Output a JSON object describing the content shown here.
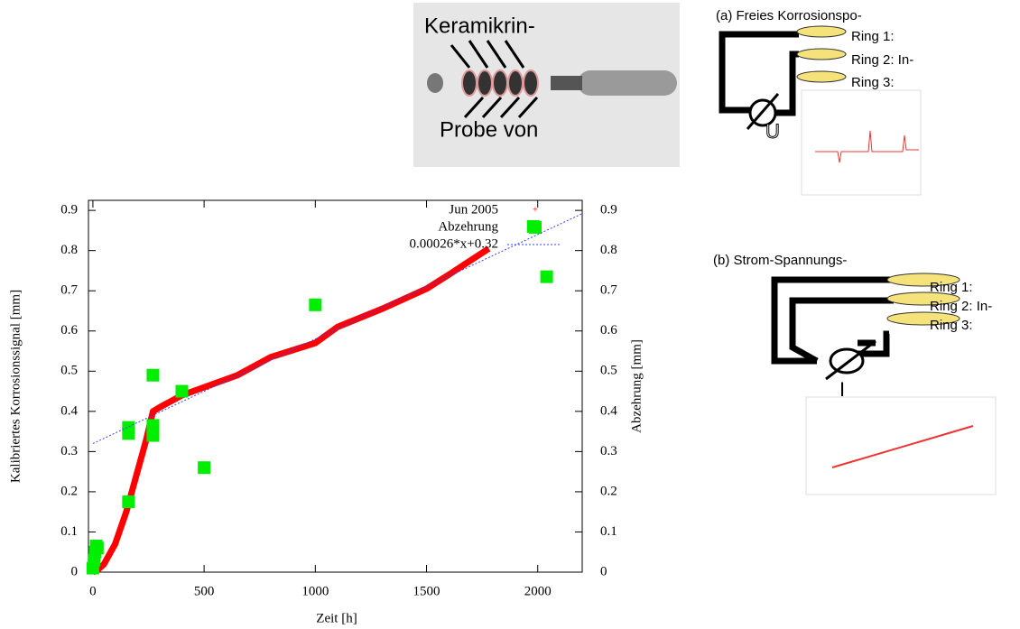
{
  "chart_data": {
    "type": "line",
    "xlabel": "Zeit [h]",
    "ylabel": "Kalibriertes Korrosionssignal [mm]",
    "y2label": "Abzehrung [mm]",
    "xlim": [
      -20,
      2200
    ],
    "ylim": [
      0,
      0.925
    ],
    "y2lim": [
      0,
      0.925
    ],
    "xticks": [
      0,
      500,
      1000,
      1500,
      2000
    ],
    "yticks": [
      0,
      0.1,
      0.2,
      0.3,
      0.4,
      0.5,
      0.6,
      0.7,
      0.8,
      0.9
    ],
    "y2ticks": [
      0,
      0.1,
      0.2,
      0.3,
      0.4,
      0.5,
      0.6,
      0.7,
      0.8,
      0.9
    ],
    "legend": "upper right",
    "series": [
      {
        "name": "Jun 2005",
        "color": "#ff0000",
        "style": "thick",
        "x": [
          0,
          20,
          50,
          100,
          150,
          200,
          240,
          270,
          300,
          400,
          500,
          650,
          800,
          1000,
          1100,
          1300,
          1500,
          1600,
          1780
        ],
        "values": [
          0,
          0.005,
          0.02,
          0.07,
          0.15,
          0.25,
          0.33,
          0.4,
          0.41,
          0.44,
          0.46,
          0.49,
          0.535,
          0.57,
          0.61,
          0.655,
          0.705,
          0.74,
          0.805
        ]
      },
      {
        "name": "Abzehrung",
        "color": "#00ee00",
        "style": "square",
        "axis": "y2",
        "x": [
          0,
          5,
          10,
          15,
          20,
          160,
          160,
          160,
          270,
          270,
          270,
          270,
          400,
          500,
          1000,
          1980,
          2040
        ],
        "values": [
          0.01,
          0.03,
          0.05,
          0.065,
          0.06,
          0.36,
          0.345,
          0.175,
          0.49,
          0.365,
          0.355,
          0.34,
          0.45,
          0.26,
          0.665,
          0.86,
          0.735
        ]
      },
      {
        "name": "0.00026*x+0.32",
        "color": "#3344ff",
        "style": "dotted",
        "x": [
          0,
          2200
        ],
        "values": [
          0.32,
          0.892
        ]
      }
    ]
  },
  "figure": {
    "photo_labels": [
      "Keramikrin-",
      "Probe von"
    ],
    "panel_a": {
      "title": "(a) Freies Korrosionspo-",
      "rings": [
        "Ring 1:",
        "Ring 2: In-",
        "Ring 3:"
      ],
      "meter": "U"
    },
    "panel_b": {
      "title": "(b) Strom-Spannungs-",
      "rings": [
        "Ring 1:",
        "Ring 2: In-",
        "Ring 3:"
      ],
      "meter": "I"
    }
  }
}
